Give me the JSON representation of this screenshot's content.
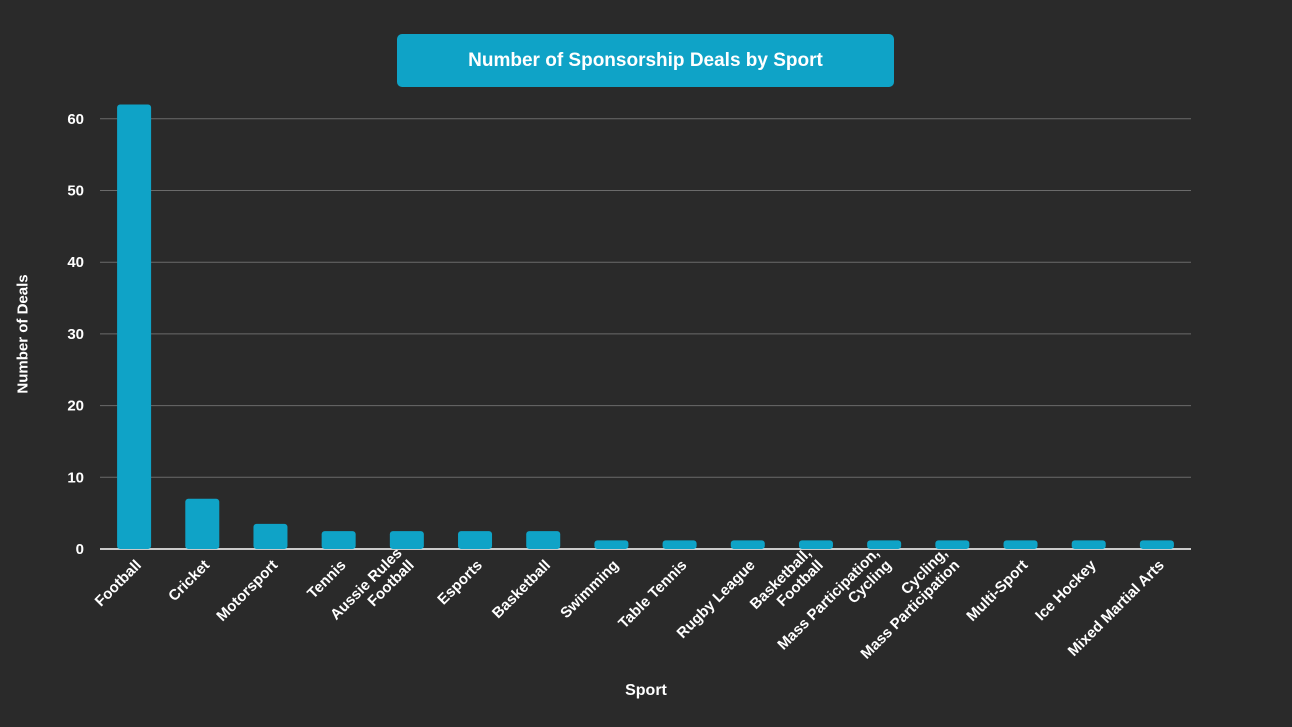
{
  "chart_data": {
    "type": "bar",
    "title": "Number of Sponsorship Deals by Sport",
    "xlabel": "Sport",
    "ylabel": "Number of Deals",
    "ylim": [
      0,
      62
    ],
    "yticks": [
      0,
      10,
      20,
      30,
      40,
      50,
      60
    ],
    "grid": true,
    "categories": [
      "Football",
      "Cricket",
      "Motorsport",
      "Tennis",
      "Aussie Rules\nFootball",
      "Esports",
      "Basketball",
      "Swimming",
      "Table Tennis",
      "Rugby League",
      "Basketball,\nFootball",
      "Mass Participation,\nCycling",
      "Cycling,\nMass Participation",
      "Multi-Sport",
      "Ice Hockey",
      "Mixed Martial Arts"
    ],
    "values": [
      62,
      7,
      3.5,
      2.5,
      2.5,
      2.5,
      2.5,
      1.2,
      1.2,
      1.2,
      1.2,
      1.2,
      1.2,
      1.2,
      1.2,
      1.2
    ]
  },
  "colors": {
    "background": "#2a2a2a",
    "bar": "#0fa3c7",
    "grid": "#6b6b6b",
    "text": "#ffffff"
  }
}
